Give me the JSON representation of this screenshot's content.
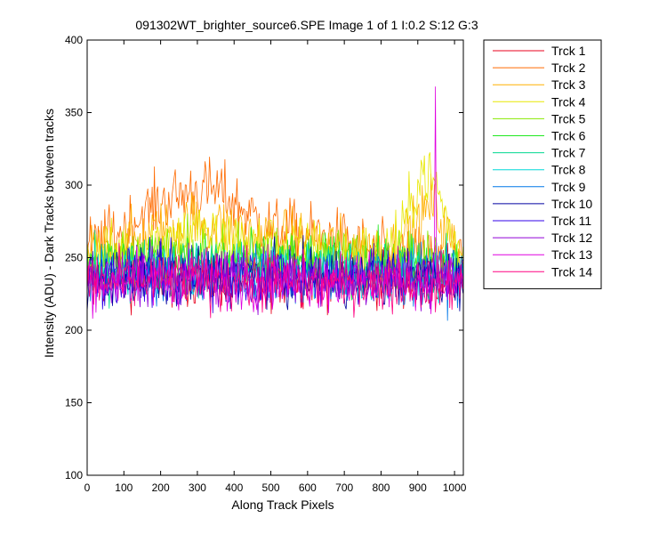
{
  "chart_data": {
    "type": "line",
    "title": "091302WT_brighter_source6.SPE  Image 1 of 1  I:0.2  S:12  G:3",
    "xlabel": "Along Track Pixels",
    "ylabel": "Intensity (ADU) - Dark Tracks between tracks",
    "xlim": [
      0,
      1024
    ],
    "ylim": [
      100,
      400
    ],
    "x_ticks": [
      0,
      100,
      200,
      300,
      400,
      500,
      600,
      700,
      800,
      900,
      1000
    ],
    "y_ticks": [
      100,
      150,
      200,
      250,
      300,
      350,
      400
    ],
    "legend_placement": "outside-right",
    "grid": false,
    "series": [
      {
        "name": "Trck 1",
        "color": "#e8001c",
        "profile": [
          [
            0,
            236
          ],
          [
            100,
            236
          ],
          [
            200,
            237
          ],
          [
            300,
            236
          ],
          [
            400,
            236
          ],
          [
            500,
            236
          ],
          [
            600,
            236
          ],
          [
            700,
            236
          ],
          [
            800,
            236
          ],
          [
            900,
            236
          ],
          [
            1024,
            236
          ]
        ]
      },
      {
        "name": "Trck 2",
        "color": "#ff6a00",
        "profile": [
          [
            0,
            255
          ],
          [
            100,
            270
          ],
          [
            200,
            288
          ],
          [
            300,
            297
          ],
          [
            360,
            296
          ],
          [
            420,
            284
          ],
          [
            500,
            270
          ],
          [
            600,
            266
          ],
          [
            700,
            261
          ],
          [
            800,
            252
          ],
          [
            900,
            250
          ],
          [
            1024,
            245
          ]
        ]
      },
      {
        "name": "Trck 3",
        "color": "#ffb000",
        "profile": [
          [
            0,
            252
          ],
          [
            100,
            258
          ],
          [
            200,
            268
          ],
          [
            300,
            275
          ],
          [
            400,
            268
          ],
          [
            500,
            262
          ],
          [
            600,
            260
          ],
          [
            700,
            256
          ],
          [
            800,
            253
          ],
          [
            900,
            272
          ],
          [
            940,
            288
          ],
          [
            980,
            265
          ],
          [
            1024,
            248
          ]
        ]
      },
      {
        "name": "Trck 4",
        "color": "#e8e800",
        "profile": [
          [
            0,
            250
          ],
          [
            100,
            255
          ],
          [
            200,
            263
          ],
          [
            300,
            267
          ],
          [
            400,
            262
          ],
          [
            500,
            258
          ],
          [
            600,
            256
          ],
          [
            700,
            253
          ],
          [
            800,
            252
          ],
          [
            860,
            268
          ],
          [
            910,
            310
          ],
          [
            950,
            300
          ],
          [
            1000,
            258
          ],
          [
            1024,
            250
          ]
        ]
      },
      {
        "name": "Trck 5",
        "color": "#88e800",
        "profile": [
          [
            0,
            246
          ],
          [
            200,
            252
          ],
          [
            400,
            251
          ],
          [
            600,
            250
          ],
          [
            800,
            249
          ],
          [
            1024,
            247
          ]
        ]
      },
      {
        "name": "Trck 6",
        "color": "#22e822",
        "profile": [
          [
            0,
            244
          ],
          [
            200,
            247
          ],
          [
            400,
            247
          ],
          [
            600,
            246
          ],
          [
            800,
            245
          ],
          [
            1024,
            244
          ]
        ]
      },
      {
        "name": "Trck 7",
        "color": "#00d890",
        "profile": [
          [
            0,
            241
          ],
          [
            200,
            243
          ],
          [
            400,
            243
          ],
          [
            600,
            242
          ],
          [
            800,
            241
          ],
          [
            1024,
            240
          ]
        ]
      },
      {
        "name": "Trck 8",
        "color": "#00d8d8",
        "profile": [
          [
            0,
            238
          ],
          [
            200,
            240
          ],
          [
            400,
            240
          ],
          [
            600,
            239
          ],
          [
            800,
            238
          ],
          [
            1024,
            237
          ]
        ]
      },
      {
        "name": "Trck 9",
        "color": "#0078e8",
        "profile": [
          [
            0,
            237
          ],
          [
            200,
            238
          ],
          [
            400,
            238
          ],
          [
            600,
            237
          ],
          [
            800,
            237
          ],
          [
            1024,
            236
          ]
        ]
      },
      {
        "name": "Trck 10",
        "color": "#0000a0",
        "profile": [
          [
            0,
            236
          ],
          [
            200,
            237
          ],
          [
            400,
            237
          ],
          [
            600,
            236
          ],
          [
            800,
            236
          ],
          [
            1024,
            235
          ]
        ]
      },
      {
        "name": "Trck 11",
        "color": "#3000e8",
        "profile": [
          [
            0,
            237
          ],
          [
            200,
            238
          ],
          [
            400,
            238
          ],
          [
            600,
            237
          ],
          [
            800,
            237
          ],
          [
            1024,
            236
          ]
        ]
      },
      {
        "name": "Trck 12",
        "color": "#9000d8",
        "profile": [
          [
            0,
            235
          ],
          [
            200,
            236
          ],
          [
            400,
            236
          ],
          [
            600,
            235
          ],
          [
            800,
            235
          ],
          [
            1024,
            234
          ]
        ]
      },
      {
        "name": "Trck 13",
        "color": "#e000e0",
        "profile": [
          [
            0,
            235
          ],
          [
            200,
            236
          ],
          [
            400,
            236
          ],
          [
            600,
            235
          ],
          [
            800,
            235
          ],
          [
            1024,
            234
          ]
        ],
        "spike": {
          "x": 948,
          "y": 368
        }
      },
      {
        "name": "Trck 14",
        "color": "#ff0080",
        "profile": [
          [
            0,
            233
          ],
          [
            200,
            234
          ],
          [
            400,
            234
          ],
          [
            600,
            233
          ],
          [
            800,
            233
          ],
          [
            1024,
            232
          ]
        ]
      }
    ]
  }
}
